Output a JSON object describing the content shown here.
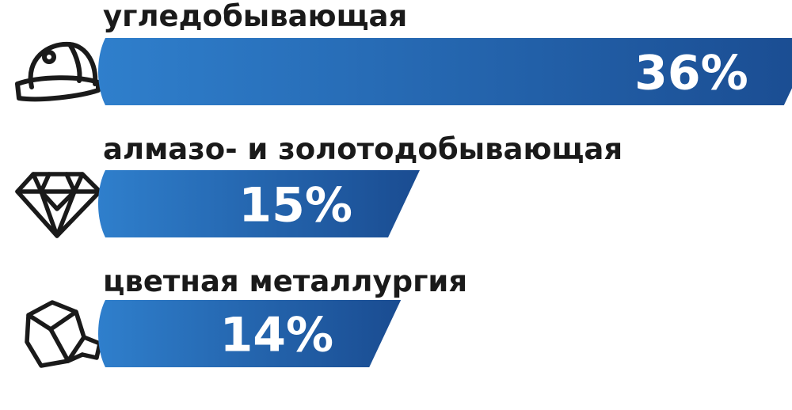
{
  "chart_data": {
    "type": "bar",
    "orientation": "horizontal",
    "categories": [
      "угледобывающая",
      "алмазо- и золотодобывающая",
      "цветная металлургия"
    ],
    "values": [
      36,
      15,
      14
    ],
    "value_labels": [
      "36%",
      "15%",
      "14%"
    ],
    "icons": [
      "hard-hat-icon",
      "diamond-icon",
      "ore-rock-icon"
    ],
    "xlim": [
      0,
      40
    ],
    "grid": false,
    "legend": "none",
    "colors": {
      "bar_light": "#2f7fcc",
      "bar_dark": "#1a4c91",
      "text": "#1a1a1a",
      "value_text": "#ffffff",
      "icon_stroke": "#1a1a1a"
    }
  }
}
